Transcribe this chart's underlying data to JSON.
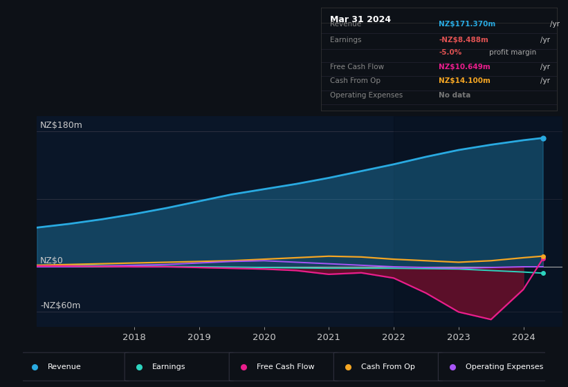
{
  "background_color": "#0d1117",
  "chart_bg": "#0a1628",
  "ylabel_top": "NZ$180m",
  "ylabel_mid": "NZ$0",
  "ylabel_bot": "-NZ$60m",
  "years": [
    2016.5,
    2017,
    2017.5,
    2018,
    2018.5,
    2019,
    2019.5,
    2020,
    2020.5,
    2021,
    2021.5,
    2022,
    2022.5,
    2023,
    2023.5,
    2024,
    2024.3
  ],
  "revenue": [
    52,
    57,
    63,
    70,
    78,
    87,
    96,
    103,
    110,
    118,
    127,
    136,
    146,
    155,
    162,
    168,
    171
  ],
  "earnings": [
    2,
    2,
    1.5,
    1,
    0.5,
    0,
    -0.5,
    -1,
    -1.5,
    -2,
    -2,
    -2,
    -2.5,
    -3,
    -5,
    -7,
    -8.5
  ],
  "free_cash_flow": [
    1,
    1,
    0.5,
    0,
    0,
    -1,
    -2,
    -3,
    -5,
    -10,
    -8,
    -15,
    -35,
    -60,
    -70,
    -30,
    10.6
  ],
  "cash_from_op": [
    2,
    3,
    4,
    5,
    6,
    7,
    8,
    10,
    12,
    14,
    13,
    10,
    8,
    6,
    8,
    12,
    14.1
  ],
  "operating_exp": [
    0,
    0,
    1,
    2,
    3,
    5,
    7,
    8,
    6,
    4,
    2,
    0,
    -1,
    -2,
    -1,
    0,
    0
  ],
  "revenue_color": "#29aae1",
  "earnings_color": "#2dd4bf",
  "free_cash_flow_color": "#e91e8c",
  "cash_from_op_color": "#f5a623",
  "operating_exp_color": "#a855f7",
  "info_box": {
    "date": "Mar 31 2024",
    "rows": [
      {
        "label": "Revenue",
        "value": "NZ$171.370m",
        "value_color": "#29aae1",
        "unit": "/yr",
        "unit_color": "#cccccc"
      },
      {
        "label": "Earnings",
        "value": "-NZ$8.488m",
        "value_color": "#e05252",
        "unit": "/yr",
        "unit_color": "#cccccc"
      },
      {
        "label": "",
        "value": "-5.0%",
        "value_color": "#e05252",
        "unit": "profit margin",
        "unit_color": "#aaaaaa"
      },
      {
        "label": "Free Cash Flow",
        "value": "NZ$10.649m",
        "value_color": "#e91e8c",
        "unit": "/yr",
        "unit_color": "#cccccc"
      },
      {
        "label": "Cash From Op",
        "value": "NZ$14.100m",
        "value_color": "#f5a623",
        "unit": "/yr",
        "unit_color": "#cccccc"
      },
      {
        "label": "Operating Expenses",
        "value": "No data",
        "value_color": "#777777",
        "unit": "",
        "unit_color": "#cccccc"
      }
    ]
  },
  "legend_items": [
    {
      "label": "Revenue",
      "color": "#29aae1"
    },
    {
      "label": "Earnings",
      "color": "#2dd4bf"
    },
    {
      "label": "Free Cash Flow",
      "color": "#e91e8c"
    },
    {
      "label": "Cash From Op",
      "color": "#f5a623"
    },
    {
      "label": "Operating Expenses",
      "color": "#a855f7"
    }
  ],
  "ylim": [
    -80,
    200
  ],
  "xlim": [
    2016.5,
    2024.6
  ],
  "x_ticks": [
    2018,
    2019,
    2020,
    2021,
    2022,
    2023,
    2024
  ],
  "gridline_180": 180,
  "gridline_90": 90,
  "gridline_0": 0,
  "gridline_neg60": -60
}
